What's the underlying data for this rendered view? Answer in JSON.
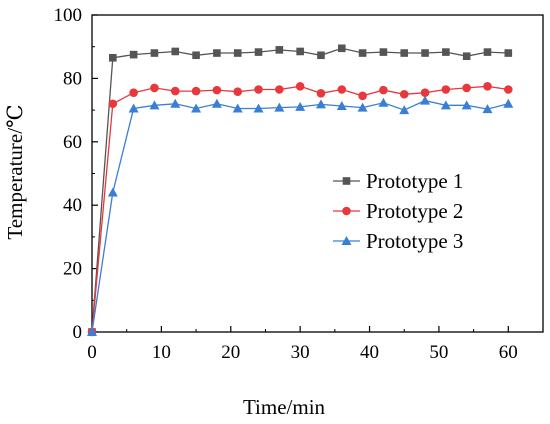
{
  "chart_data": {
    "type": "line",
    "title": "",
    "xlabel": "Time/min",
    "ylabel": "Temperature/℃",
    "xlim": [
      0,
      65
    ],
    "ylim": [
      0,
      100
    ],
    "x_ticks": [
      0,
      10,
      20,
      30,
      40,
      50,
      60
    ],
    "y_ticks": [
      0,
      20,
      40,
      60,
      80,
      100
    ],
    "grid": false,
    "legend_position": "right",
    "x": [
      0,
      3,
      6,
      9,
      12,
      15,
      18,
      21,
      24,
      27,
      30,
      33,
      36,
      39,
      42,
      45,
      48,
      51,
      54,
      57,
      60
    ],
    "series": [
      {
        "name": "Prototype 1",
        "color": "#555555",
        "marker": "square",
        "values": [
          0,
          86.5,
          87.5,
          88.0,
          88.5,
          87.3,
          88.0,
          88.0,
          88.3,
          89.0,
          88.5,
          87.3,
          89.5,
          88.0,
          88.3,
          88.0,
          88.0,
          88.3,
          87.0,
          88.3,
          88.0
        ]
      },
      {
        "name": "Prototype 2",
        "color": "#e8383d",
        "marker": "circle",
        "values": [
          0,
          72.0,
          75.5,
          77.0,
          76.0,
          76.0,
          76.3,
          75.8,
          76.5,
          76.5,
          77.5,
          75.3,
          76.5,
          74.5,
          76.3,
          75.0,
          75.5,
          76.5,
          77.0,
          77.5,
          76.5
        ]
      },
      {
        "name": "Prototype 3",
        "color": "#3a7fd5",
        "marker": "triangle",
        "values": [
          0,
          44.0,
          70.5,
          71.5,
          72.0,
          70.5,
          72.0,
          70.5,
          70.5,
          70.8,
          71.0,
          71.8,
          71.3,
          70.8,
          72.3,
          70.0,
          73.0,
          71.5,
          71.5,
          70.3,
          72.0
        ]
      }
    ]
  }
}
